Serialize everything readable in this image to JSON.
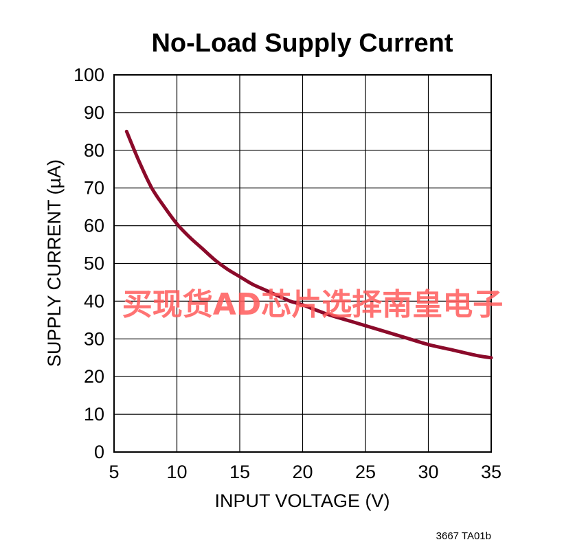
{
  "chart_data": {
    "type": "line",
    "title": "No-Load Supply Current",
    "xlabel": "INPUT VOLTAGE (V)",
    "ylabel": "SUPPLY CURRENT (µA)",
    "xlim": [
      5,
      35
    ],
    "ylim": [
      0,
      100
    ],
    "xticks": [
      "5",
      "10",
      "15",
      "20",
      "25",
      "30",
      "35"
    ],
    "yticks": [
      "0",
      "10",
      "20",
      "30",
      "40",
      "50",
      "60",
      "70",
      "80",
      "90",
      "100"
    ],
    "grid": true,
    "series": [
      {
        "x": [
          6,
          7,
          8,
          9,
          10,
          11,
          12,
          13,
          14,
          15,
          16,
          17,
          18,
          19,
          20,
          22,
          24,
          26,
          28,
          30,
          32,
          34,
          35
        ],
        "y": [
          85,
          77,
          70,
          65,
          60.5,
          57,
          54,
          51,
          48.5,
          46.5,
          44.5,
          43,
          41.5,
          40,
          39,
          36.5,
          34.5,
          32.5,
          30.5,
          28.5,
          27,
          25.5,
          25
        ]
      }
    ],
    "line_color": "#8b0a2a"
  },
  "footnote": "3667 TA01b",
  "watermark": "买现货AD芯片选择南皇电子"
}
